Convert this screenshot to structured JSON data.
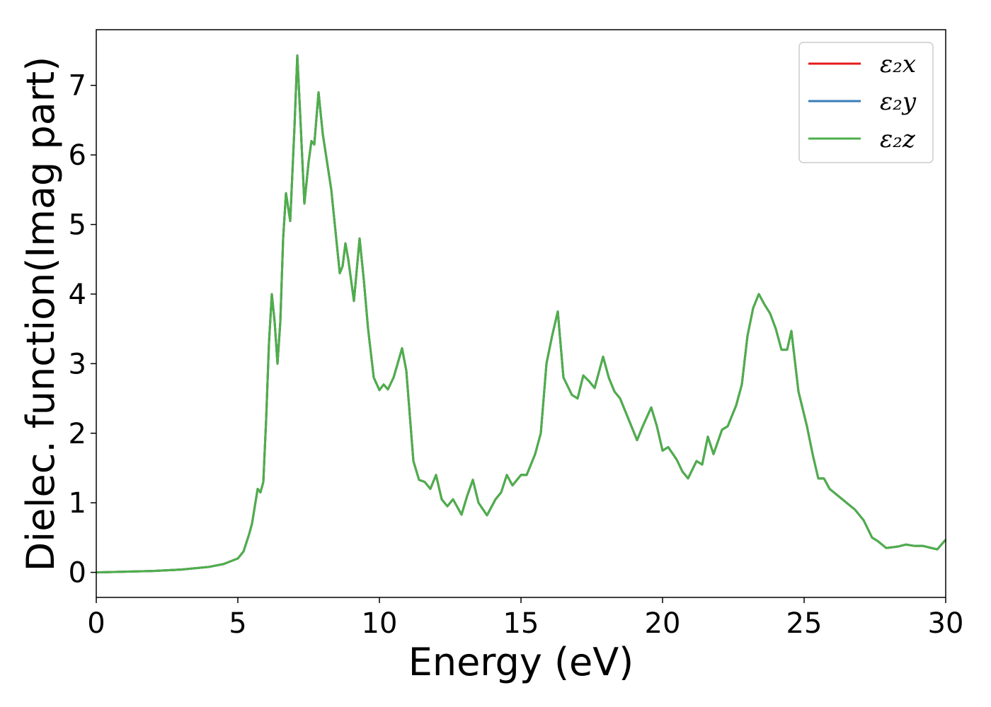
{
  "chart_data": {
    "type": "line",
    "xlabel": "Energy (eV)",
    "ylabel": "Dielec. function(Imag part)",
    "x": [
      0,
      1,
      2,
      3,
      4,
      4.5,
      5,
      5.2,
      5.4,
      5.5,
      5.6,
      5.7,
      5.8,
      5.9,
      6,
      6.1,
      6.2,
      6.3,
      6.4,
      6.5,
      6.6,
      6.7,
      6.85,
      7,
      7.1,
      7.2,
      7.35,
      7.5,
      7.6,
      7.7,
      7.85,
      8,
      8.3,
      8.6,
      8.7,
      8.8,
      8.9,
      9.1,
      9.3,
      9.45,
      9.6,
      9.8,
      10,
      10.15,
      10.3,
      10.5,
      10.8,
      10.95,
      11.2,
      11.4,
      11.6,
      11.8,
      12,
      12.2,
      12.4,
      12.6,
      12.9,
      13.1,
      13.3,
      13.5,
      13.8,
      14.1,
      14.3,
      14.5,
      14.7,
      15,
      15.2,
      15.5,
      15.7,
      15.9,
      16.1,
      16.3,
      16.5,
      16.8,
      17,
      17.2,
      17.4,
      17.6,
      17.9,
      18.1,
      18.3,
      18.5,
      18.8,
      19.1,
      19.3,
      19.6,
      19.8,
      20,
      20.2,
      20.5,
      20.7,
      20.9,
      21.2,
      21.4,
      21.6,
      21.8,
      22.1,
      22.3,
      22.6,
      22.8,
      23,
      23.2,
      23.4,
      23.6,
      23.8,
      24,
      24.2,
      24.4,
      24.55,
      24.8,
      25.1,
      25.3,
      25.5,
      25.7,
      25.9,
      26.2,
      26.5,
      26.8,
      27.1,
      27.4,
      27.6,
      27.9,
      28.3,
      28.6,
      28.9,
      29.2,
      29.5,
      29.7,
      30
    ],
    "series": [
      {
        "name": "ε₂x",
        "color": "#e41a1c",
        "values": [
          0,
          0.01,
          0.02,
          0.04,
          0.08,
          0.12,
          0.2,
          0.3,
          0.55,
          0.7,
          0.95,
          1.2,
          1.15,
          1.3,
          2.2,
          3.3,
          4.0,
          3.6,
          3.0,
          3.6,
          4.8,
          5.45,
          5.05,
          6.4,
          7.43,
          6.6,
          5.3,
          5.9,
          6.2,
          6.15,
          6.9,
          6.3,
          5.5,
          4.3,
          4.4,
          4.73,
          4.5,
          3.9,
          4.8,
          4.2,
          3.5,
          2.8,
          2.62,
          2.7,
          2.63,
          2.8,
          3.22,
          2.9,
          1.6,
          1.33,
          1.3,
          1.2,
          1.4,
          1.05,
          0.95,
          1.05,
          0.83,
          1.1,
          1.33,
          1.0,
          0.82,
          1.05,
          1.15,
          1.4,
          1.25,
          1.4,
          1.4,
          1.7,
          2.0,
          3.0,
          3.4,
          3.75,
          2.8,
          2.55,
          2.5,
          2.83,
          2.75,
          2.65,
          3.1,
          2.8,
          2.6,
          2.5,
          2.2,
          1.9,
          2.1,
          2.37,
          2.1,
          1.75,
          1.8,
          1.62,
          1.45,
          1.35,
          1.6,
          1.55,
          1.95,
          1.7,
          2.05,
          2.1,
          2.4,
          2.7,
          3.4,
          3.8,
          4.0,
          3.85,
          3.72,
          3.5,
          3.2,
          3.2,
          3.47,
          2.6,
          2.1,
          1.7,
          1.35,
          1.35,
          1.2,
          1.1,
          1.0,
          0.9,
          0.75,
          0.5,
          0.45,
          0.35,
          0.37,
          0.4,
          0.38,
          0.38,
          0.35,
          0.33,
          0.47
        ]
      },
      {
        "name": "ε₂y",
        "color": "#377eb8",
        "values": [
          0,
          0.01,
          0.02,
          0.04,
          0.08,
          0.12,
          0.2,
          0.3,
          0.55,
          0.7,
          0.95,
          1.2,
          1.15,
          1.3,
          2.2,
          3.3,
          4.0,
          3.6,
          3.0,
          3.6,
          4.8,
          5.45,
          5.05,
          6.4,
          7.43,
          6.6,
          5.3,
          5.9,
          6.2,
          6.15,
          6.9,
          6.3,
          5.5,
          4.3,
          4.4,
          4.73,
          4.5,
          3.9,
          4.8,
          4.2,
          3.5,
          2.8,
          2.62,
          2.7,
          2.63,
          2.8,
          3.22,
          2.9,
          1.6,
          1.33,
          1.3,
          1.2,
          1.4,
          1.05,
          0.95,
          1.05,
          0.83,
          1.1,
          1.33,
          1.0,
          0.82,
          1.05,
          1.15,
          1.4,
          1.25,
          1.4,
          1.4,
          1.7,
          2.0,
          3.0,
          3.4,
          3.75,
          2.8,
          2.55,
          2.5,
          2.83,
          2.75,
          2.65,
          3.1,
          2.8,
          2.6,
          2.5,
          2.2,
          1.9,
          2.1,
          2.37,
          2.1,
          1.75,
          1.8,
          1.62,
          1.45,
          1.35,
          1.6,
          1.55,
          1.95,
          1.7,
          2.05,
          2.1,
          2.4,
          2.7,
          3.4,
          3.8,
          4.0,
          3.85,
          3.72,
          3.5,
          3.2,
          3.2,
          3.47,
          2.6,
          2.1,
          1.7,
          1.35,
          1.35,
          1.2,
          1.1,
          1.0,
          0.9,
          0.75,
          0.5,
          0.45,
          0.35,
          0.37,
          0.4,
          0.38,
          0.38,
          0.35,
          0.33,
          0.47
        ]
      },
      {
        "name": "ε₂z",
        "color": "#4daf4a",
        "values": [
          0,
          0.01,
          0.02,
          0.04,
          0.08,
          0.12,
          0.2,
          0.3,
          0.55,
          0.7,
          0.95,
          1.2,
          1.15,
          1.3,
          2.2,
          3.3,
          4.0,
          3.6,
          3.0,
          3.6,
          4.8,
          5.45,
          5.05,
          6.4,
          7.43,
          6.6,
          5.3,
          5.9,
          6.2,
          6.15,
          6.9,
          6.3,
          5.5,
          4.3,
          4.4,
          4.73,
          4.5,
          3.9,
          4.8,
          4.2,
          3.5,
          2.8,
          2.62,
          2.7,
          2.63,
          2.8,
          3.22,
          2.9,
          1.6,
          1.33,
          1.3,
          1.2,
          1.4,
          1.05,
          0.95,
          1.05,
          0.83,
          1.1,
          1.33,
          1.0,
          0.82,
          1.05,
          1.15,
          1.4,
          1.25,
          1.4,
          1.4,
          1.7,
          2.0,
          3.0,
          3.4,
          3.75,
          2.8,
          2.55,
          2.5,
          2.83,
          2.75,
          2.65,
          3.1,
          2.8,
          2.6,
          2.5,
          2.2,
          1.9,
          2.1,
          2.37,
          2.1,
          1.75,
          1.8,
          1.62,
          1.45,
          1.35,
          1.6,
          1.55,
          1.95,
          1.7,
          2.05,
          2.1,
          2.4,
          2.7,
          3.4,
          3.8,
          4.0,
          3.85,
          3.72,
          3.5,
          3.2,
          3.2,
          3.47,
          2.6,
          2.1,
          1.7,
          1.35,
          1.35,
          1.2,
          1.1,
          1.0,
          0.9,
          0.75,
          0.5,
          0.45,
          0.35,
          0.37,
          0.4,
          0.38,
          0.38,
          0.35,
          0.33,
          0.47
        ]
      }
    ],
    "xlim": [
      0,
      30
    ],
    "xticks": [
      0,
      5,
      10,
      15,
      20,
      25,
      30
    ],
    "ylim": [
      -0.36,
      7.8
    ],
    "yticks": [
      0,
      1,
      2,
      3,
      4,
      5,
      6,
      7
    ],
    "grid": false,
    "legend": "upper right"
  }
}
